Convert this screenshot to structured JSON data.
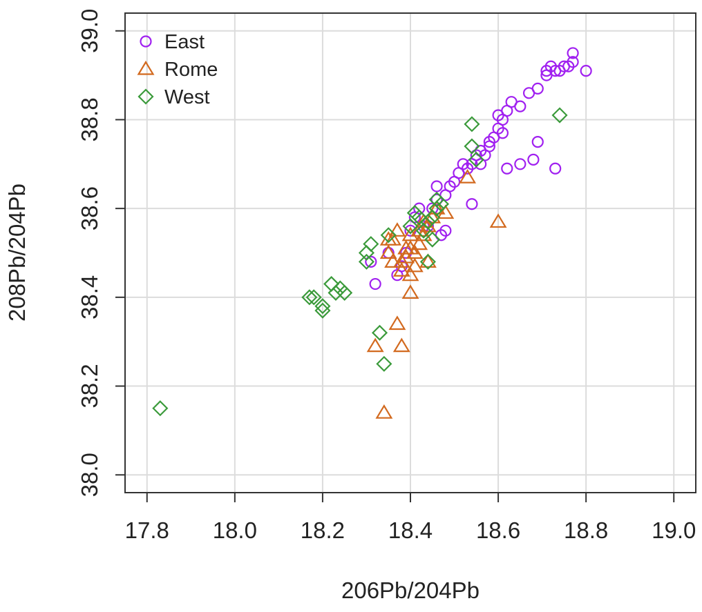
{
  "chart_data": {
    "type": "scatter",
    "xlabel": "206Pb/204Pb",
    "ylabel": "208Pb/204Pb",
    "xlim": [
      17.75,
      19.05
    ],
    "ylim": [
      37.96,
      39.04
    ],
    "xticks": [
      "17.8",
      "18.0",
      "18.2",
      "18.4",
      "18.6",
      "18.8",
      "19.0"
    ],
    "yticks": [
      "38.0",
      "38.2",
      "38.4",
      "38.6",
      "38.8",
      "39.0"
    ],
    "grid": true,
    "legend_position": "top-left",
    "series": [
      {
        "name": "East",
        "marker": "circle",
        "color": "#a020f0",
        "points": [
          [
            18.32,
            38.43
          ],
          [
            18.31,
            38.48
          ],
          [
            18.35,
            38.5
          ],
          [
            18.37,
            38.45
          ],
          [
            18.38,
            38.47
          ],
          [
            18.39,
            38.5
          ],
          [
            18.4,
            38.55
          ],
          [
            18.41,
            38.58
          ],
          [
            18.42,
            38.6
          ],
          [
            18.43,
            38.56
          ],
          [
            18.45,
            38.6
          ],
          [
            18.46,
            38.62
          ],
          [
            18.46,
            38.65
          ],
          [
            18.47,
            38.54
          ],
          [
            18.48,
            38.55
          ],
          [
            18.48,
            38.63
          ],
          [
            18.49,
            38.65
          ],
          [
            18.5,
            38.66
          ],
          [
            18.51,
            38.68
          ],
          [
            18.52,
            38.7
          ],
          [
            18.53,
            38.69
          ],
          [
            18.54,
            38.7
          ],
          [
            18.55,
            38.72
          ],
          [
            18.56,
            38.73
          ],
          [
            18.57,
            38.72
          ],
          [
            18.58,
            38.75
          ],
          [
            18.59,
            38.76
          ],
          [
            18.6,
            38.78
          ],
          [
            18.61,
            38.8
          ],
          [
            18.62,
            38.82
          ],
          [
            18.63,
            38.84
          ],
          [
            18.65,
            38.83
          ],
          [
            18.67,
            38.86
          ],
          [
            18.69,
            38.87
          ],
          [
            18.71,
            38.9
          ],
          [
            18.72,
            38.92
          ],
          [
            18.73,
            38.91
          ],
          [
            18.74,
            38.91
          ],
          [
            18.75,
            38.92
          ],
          [
            18.76,
            38.92
          ],
          [
            18.77,
            38.93
          ],
          [
            18.77,
            38.95
          ],
          [
            18.8,
            38.91
          ],
          [
            18.71,
            38.91
          ],
          [
            18.54,
            38.61
          ],
          [
            18.56,
            38.7
          ],
          [
            18.62,
            38.69
          ],
          [
            18.65,
            38.7
          ],
          [
            18.69,
            38.75
          ],
          [
            18.68,
            38.71
          ],
          [
            18.73,
            38.69
          ],
          [
            18.6,
            38.81
          ],
          [
            18.61,
            38.77
          ],
          [
            18.44,
            38.56
          ],
          [
            18.58,
            38.74
          ]
        ]
      },
      {
        "name": "Rome",
        "marker": "triangle",
        "color": "#d2691e",
        "points": [
          [
            18.34,
            38.14
          ],
          [
            18.32,
            38.29
          ],
          [
            18.38,
            38.29
          ],
          [
            18.37,
            38.34
          ],
          [
            18.4,
            38.41
          ],
          [
            18.35,
            38.5
          ],
          [
            18.36,
            38.53
          ],
          [
            18.37,
            38.55
          ],
          [
            18.38,
            38.48
          ],
          [
            18.39,
            38.51
          ],
          [
            18.4,
            38.54
          ],
          [
            18.41,
            38.5
          ],
          [
            18.42,
            38.55
          ],
          [
            18.43,
            38.57
          ],
          [
            18.44,
            38.56
          ],
          [
            18.45,
            38.58
          ],
          [
            18.46,
            38.6
          ],
          [
            18.48,
            38.59
          ],
          [
            18.53,
            38.67
          ],
          [
            18.6,
            38.57
          ],
          [
            18.4,
            38.45
          ],
          [
            18.41,
            38.47
          ],
          [
            18.39,
            38.49
          ],
          [
            18.38,
            38.46
          ],
          [
            18.42,
            38.52
          ],
          [
            18.44,
            38.48
          ],
          [
            18.36,
            38.48
          ],
          [
            18.4,
            38.51
          ],
          [
            18.43,
            38.54
          ],
          [
            18.35,
            38.53
          ]
        ]
      },
      {
        "name": "West",
        "marker": "diamond",
        "color": "#3a9a3a",
        "points": [
          [
            17.83,
            38.15
          ],
          [
            18.17,
            38.4
          ],
          [
            18.18,
            38.4
          ],
          [
            18.2,
            38.37
          ],
          [
            18.2,
            38.38
          ],
          [
            18.22,
            38.43
          ],
          [
            18.23,
            38.41
          ],
          [
            18.24,
            38.42
          ],
          [
            18.25,
            38.41
          ],
          [
            18.3,
            38.48
          ],
          [
            18.3,
            38.5
          ],
          [
            18.31,
            38.52
          ],
          [
            18.33,
            38.32
          ],
          [
            18.34,
            38.25
          ],
          [
            18.35,
            38.54
          ],
          [
            18.4,
            38.56
          ],
          [
            18.41,
            38.59
          ],
          [
            18.43,
            38.55
          ],
          [
            18.44,
            38.57
          ],
          [
            18.45,
            38.58
          ],
          [
            18.46,
            38.6
          ],
          [
            18.46,
            38.62
          ],
          [
            18.54,
            38.79
          ],
          [
            18.54,
            38.74
          ],
          [
            18.55,
            38.71
          ],
          [
            18.74,
            38.81
          ],
          [
            18.44,
            38.48
          ],
          [
            18.45,
            38.53
          ],
          [
            18.47,
            38.61
          ],
          [
            18.42,
            38.58
          ]
        ]
      }
    ]
  }
}
